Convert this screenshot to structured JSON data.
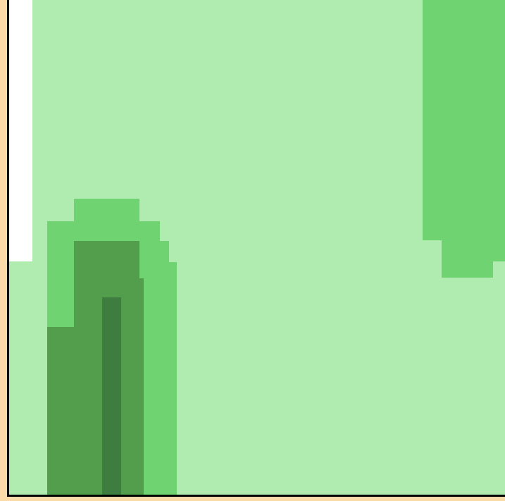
{
  "scene": {
    "name": "forest-clearing-view",
    "colors": {
      "frame": "#fbd9a8",
      "frame_line": "#000000",
      "grass_light": "#b0ecaf",
      "grass_medium": "#6fd371",
      "grass_dark": "#529e4d",
      "trunk_dark": "#3f7c3f",
      "white_strip": "#ffffff"
    },
    "elements": {
      "left_strip_icon": "white-bar",
      "tree_icon": "tree-sprite",
      "bush_icon": "bush-sprite"
    }
  }
}
